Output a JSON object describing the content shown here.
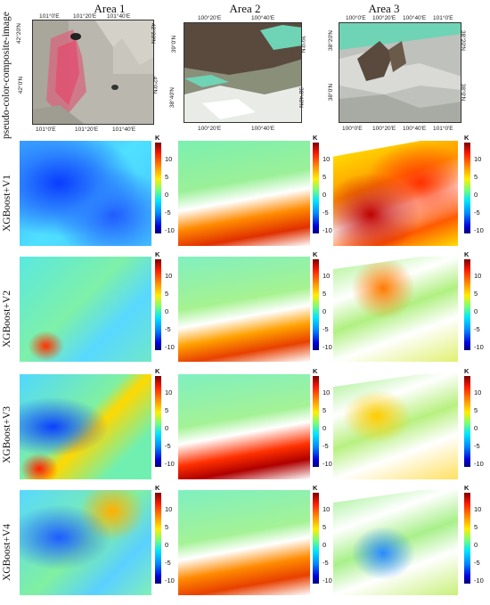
{
  "columns": [
    "Area 1",
    "Area 2",
    "Area 3"
  ],
  "rows": [
    "pseudo-color-composite-image",
    "XGBoost+V1",
    "XGBoost+V2",
    "XGBoost+V3",
    "XGBoost+V4"
  ],
  "colorbar": {
    "unit": "K",
    "ticks": [
      "10",
      "5",
      "0",
      "-5",
      "-10"
    ]
  },
  "area1_ticks": {
    "top": [
      "101°0'E",
      "101°20'E",
      "101°40'E"
    ],
    "bottom": [
      "101°0'E",
      "101°20'E",
      "101°40'E"
    ],
    "left": [
      "42°20'N",
      "42°0'N"
    ],
    "right": [
      "42°20'N",
      "42°0'N"
    ]
  },
  "area2_ticks": {
    "top": [
      "100°20'E",
      "100°40'E"
    ],
    "bottom": [
      "100°20'E",
      "100°40'E"
    ],
    "left": [
      "39°0'N",
      "38°40'N"
    ],
    "right": [
      "39°0'N",
      "38°40'N"
    ]
  },
  "area3_ticks": {
    "top": [
      "100°0'E",
      "100°20'E",
      "100°40'E",
      "101°0'E"
    ],
    "bottom": [
      "100°0'E",
      "100°20'E",
      "100°40'E",
      "101°0'E"
    ],
    "left": [
      "38°20'N",
      "38°0'N"
    ],
    "right": [
      "38°20'N",
      "38°0'N"
    ]
  },
  "palette": {
    "high": "#ff1a00",
    "mid": "#77ff77",
    "low": "#0000dd",
    "composite_gray": "#b8b8b0",
    "composite_dark": "#6a5a4a",
    "composite_teal": "#6fd3b6"
  }
}
